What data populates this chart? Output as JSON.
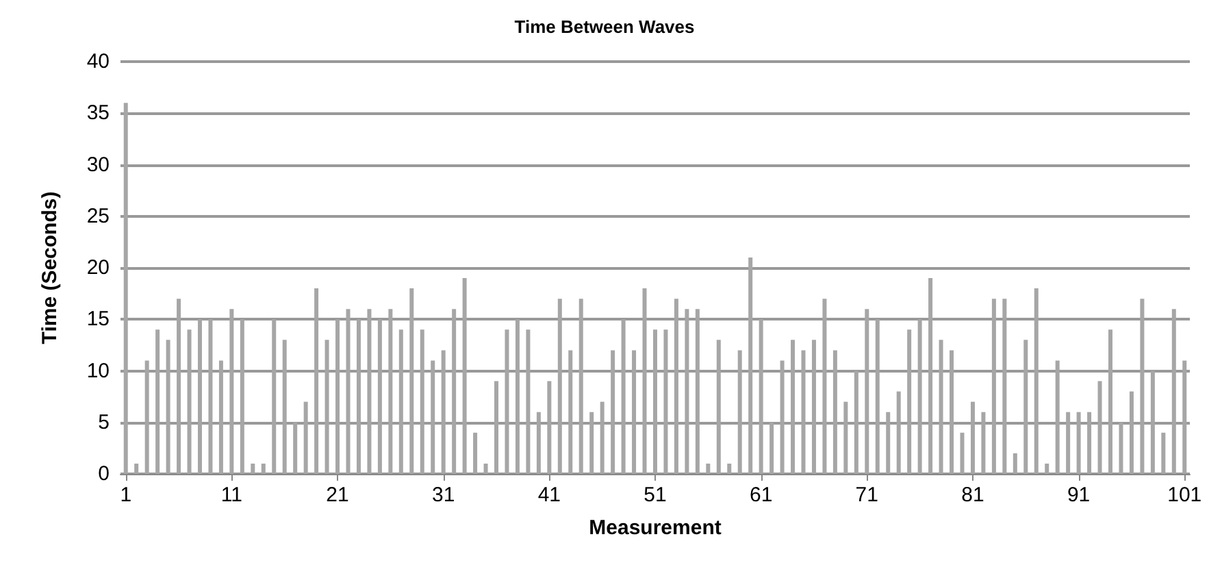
{
  "chart_data": {
    "type": "bar",
    "title": "Time Between Waves",
    "xlabel": "Measurement",
    "ylabel": "Time (Seconds)",
    "categories": [
      "1",
      null,
      null,
      null,
      null,
      null,
      null,
      null,
      null,
      null,
      "11",
      null,
      null,
      null,
      null,
      null,
      null,
      null,
      null,
      null,
      "21",
      null,
      null,
      null,
      null,
      null,
      null,
      null,
      null,
      null,
      "31",
      null,
      null,
      null,
      null,
      null,
      null,
      null,
      null,
      null,
      "41",
      null,
      null,
      null,
      null,
      null,
      null,
      null,
      null,
      null,
      "51",
      null,
      null,
      null,
      null,
      null,
      null,
      null,
      null,
      null,
      "61",
      null,
      null,
      null,
      null,
      null,
      null,
      null,
      null,
      null,
      "71",
      null,
      null,
      null,
      null,
      null,
      null,
      null,
      null,
      null,
      "81",
      null,
      null,
      null,
      null,
      null,
      null,
      null,
      null,
      null,
      "91",
      null,
      null,
      null,
      null,
      null,
      null,
      null,
      null,
      null,
      "101"
    ],
    "values": [
      36,
      1,
      11,
      14,
      13,
      17,
      14,
      15,
      15,
      11,
      16,
      15,
      1,
      1,
      15,
      13,
      5,
      7,
      18,
      13,
      15,
      16,
      15,
      16,
      15,
      16,
      14,
      18,
      14,
      11,
      12,
      16,
      19,
      4,
      1,
      9,
      14,
      15,
      14,
      6,
      9,
      17,
      12,
      17,
      6,
      7,
      12,
      15,
      12,
      18,
      14,
      14,
      17,
      16,
      16,
      1,
      13,
      1,
      12,
      21,
      15,
      5,
      11,
      13,
      12,
      13,
      17,
      12,
      7,
      10,
      16,
      15,
      6,
      8,
      14,
      15,
      19,
      13,
      12,
      4,
      7,
      6,
      17,
      17,
      2,
      13,
      18,
      1,
      11,
      6,
      6,
      6,
      9,
      14,
      5,
      8,
      17,
      10,
      4,
      16,
      11
    ],
    "color": "#a6a6a6",
    "ylim": [
      0,
      40
    ],
    "yticks": [
      0,
      5,
      10,
      15,
      20,
      25,
      30,
      35,
      40
    ],
    "grid": "y"
  }
}
